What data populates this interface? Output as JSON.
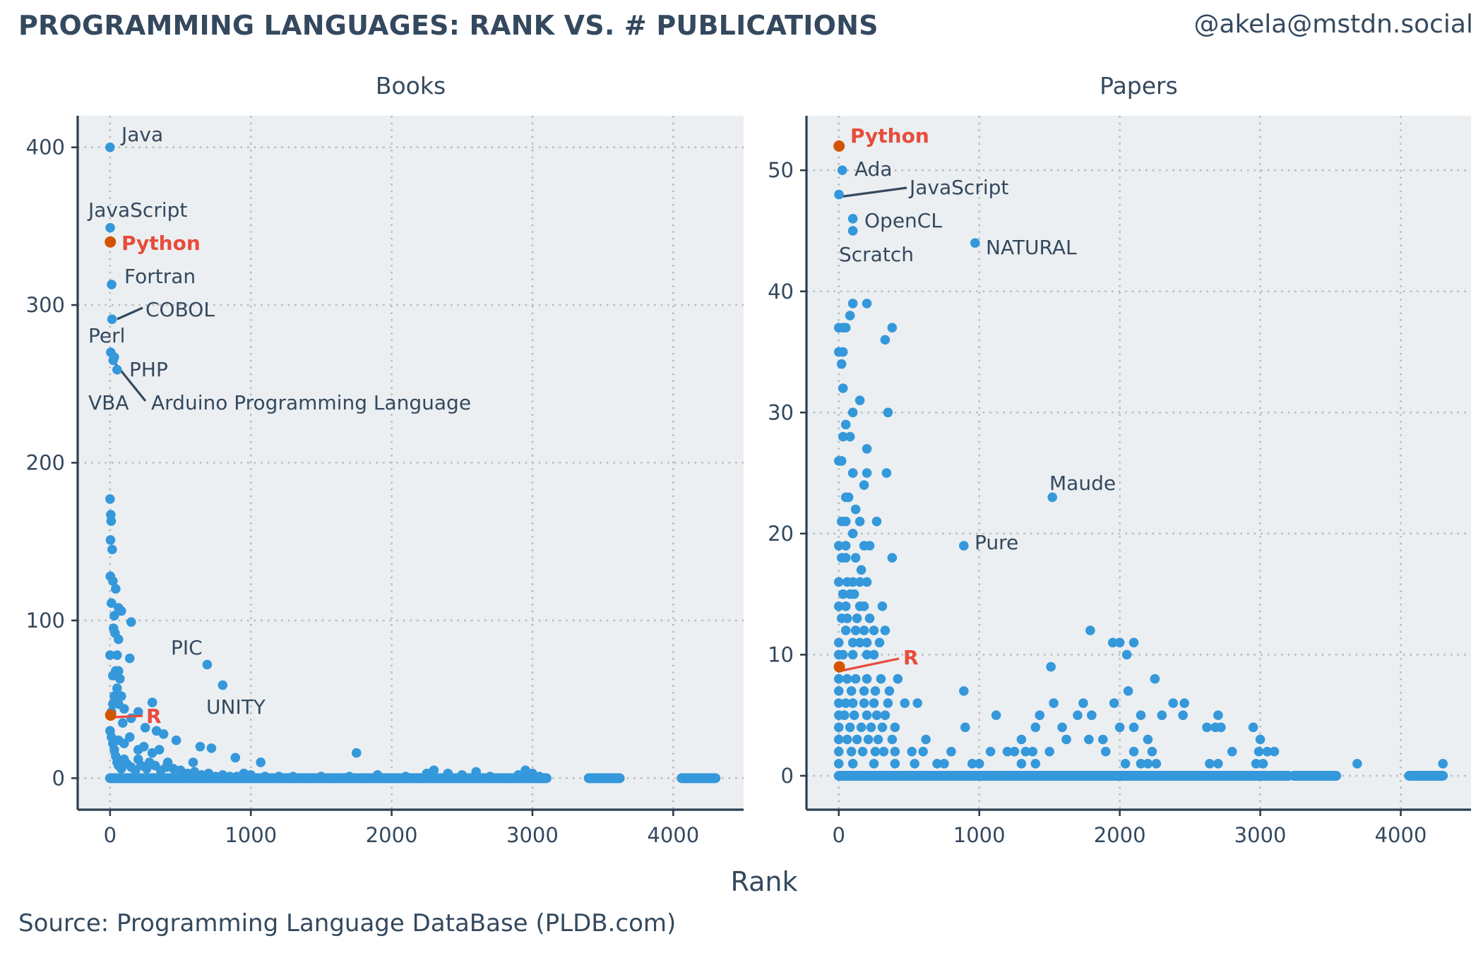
{
  "title": "PROGRAMMING LANGUAGES: RANK VS. # PUBLICATIONS",
  "handle": "@akela@mstdn.social",
  "source": "Source: Programming Language DataBase (PLDB.com)",
  "x_axis_title": "Rank",
  "colors": {
    "point": "#3498db",
    "highlight_point": "#d35400",
    "highlight_text": "#e74c3c",
    "panel_bg": "#eceff1",
    "text": "#34495e"
  },
  "chart_data": [
    {
      "type": "scatter",
      "panel": "Books",
      "xlabel": "Rank",
      "xlim": [
        -230,
        4500
      ],
      "ylim": [
        -20,
        420
      ],
      "x_ticks": [
        0,
        1000,
        2000,
        3000,
        4000
      ],
      "y_ticks": [
        0,
        100,
        200,
        300,
        400
      ],
      "grid": true,
      "highlight": [
        "Python",
        "R"
      ],
      "labeled_points": [
        {
          "label": "Java",
          "x": 0,
          "y": 400
        },
        {
          "label": "JavaScript",
          "x": 1,
          "y": 349
        },
        {
          "label": "Python",
          "x": 2,
          "y": 340
        },
        {
          "label": "Fortran",
          "x": 11,
          "y": 313
        },
        {
          "label": "COBOL",
          "x": 14,
          "y": 291
        },
        {
          "label": "Perl",
          "x": 5,
          "y": 270
        },
        {
          "label": "PHP",
          "x": 22,
          "y": 265
        },
        {
          "label": "VBA",
          "x": 30,
          "y": 267
        },
        {
          "label": "Arduino Programming Language",
          "x": 50,
          "y": 259
        },
        {
          "label": "PIC",
          "x": 690,
          "y": 72
        },
        {
          "label": "UNITY",
          "x": 800,
          "y": 59
        },
        {
          "label": "R",
          "x": 4,
          "y": 40
        }
      ],
      "points": [
        [
          0,
          177
        ],
        [
          5,
          167
        ],
        [
          8,
          163
        ],
        [
          3,
          151
        ],
        [
          15,
          145
        ],
        [
          2,
          128
        ],
        [
          20,
          125
        ],
        [
          40,
          120
        ],
        [
          10,
          111
        ],
        [
          60,
          108
        ],
        [
          80,
          106
        ],
        [
          150,
          99
        ],
        [
          30,
          103
        ],
        [
          25,
          95
        ],
        [
          35,
          92
        ],
        [
          60,
          88
        ],
        [
          0,
          78
        ],
        [
          50,
          78
        ],
        [
          140,
          76
        ],
        [
          40,
          68
        ],
        [
          60,
          68
        ],
        [
          20,
          65
        ],
        [
          70,
          63
        ],
        [
          50,
          57
        ],
        [
          30,
          52
        ],
        [
          80,
          52
        ],
        [
          20,
          47
        ],
        [
          60,
          47
        ],
        [
          300,
          48
        ],
        [
          100,
          44
        ],
        [
          10,
          42
        ],
        [
          200,
          42
        ],
        [
          150,
          38
        ],
        [
          250,
          32
        ],
        [
          330,
          30
        ],
        [
          380,
          28
        ],
        [
          470,
          24
        ],
        [
          90,
          35
        ],
        [
          140,
          26
        ],
        [
          60,
          24
        ],
        [
          200,
          18
        ],
        [
          240,
          20
        ],
        [
          100,
          22
        ],
        [
          300,
          16
        ],
        [
          350,
          18
        ],
        [
          410,
          10
        ],
        [
          590,
          10
        ],
        [
          640,
          20
        ],
        [
          720,
          19
        ],
        [
          890,
          13
        ],
        [
          1070,
          10
        ],
        [
          1750,
          16
        ],
        [
          0,
          30
        ],
        [
          10,
          26
        ],
        [
          20,
          22
        ],
        [
          30,
          18
        ],
        [
          40,
          14
        ],
        [
          50,
          10
        ],
        [
          60,
          8
        ],
        [
          80,
          6
        ],
        [
          100,
          12
        ],
        [
          120,
          9
        ],
        [
          150,
          7
        ],
        [
          180,
          5
        ],
        [
          200,
          12
        ],
        [
          220,
          8
        ],
        [
          260,
          6
        ],
        [
          280,
          10
        ],
        [
          320,
          8
        ],
        [
          360,
          5
        ],
        [
          400,
          7
        ],
        [
          450,
          6
        ],
        [
          500,
          5
        ],
        [
          550,
          3
        ],
        [
          600,
          4
        ],
        [
          650,
          2
        ],
        [
          700,
          3
        ],
        [
          750,
          1
        ],
        [
          800,
          2
        ],
        [
          850,
          1
        ],
        [
          900,
          1
        ],
        [
          950,
          3
        ],
        [
          1000,
          2
        ],
        [
          1100,
          1
        ],
        [
          1200,
          1
        ],
        [
          1300,
          1
        ],
        [
          1400,
          0
        ],
        [
          1500,
          1
        ],
        [
          1600,
          0
        ],
        [
          1700,
          1
        ],
        [
          1800,
          0
        ],
        [
          1900,
          2
        ],
        [
          2000,
          0
        ],
        [
          2100,
          1
        ],
        [
          2200,
          0
        ],
        [
          2250,
          3
        ],
        [
          2300,
          5
        ],
        [
          2400,
          3
        ],
        [
          2500,
          2
        ],
        [
          2600,
          4
        ],
        [
          2700,
          1
        ],
        [
          2800,
          0
        ],
        [
          2900,
          2
        ],
        [
          2950,
          5
        ],
        [
          3000,
          3
        ],
        [
          3050,
          1
        ],
        [
          3100,
          0
        ]
      ],
      "dense_segments": [
        [
          0,
          3100
        ],
        [
          3400,
          3620
        ],
        [
          4060,
          4300
        ]
      ]
    },
    {
      "type": "scatter",
      "panel": "Papers",
      "xlabel": "Rank",
      "xlim": [
        -230,
        4500
      ],
      "ylim": [
        -2.8,
        54.5
      ],
      "x_ticks": [
        0,
        1000,
        2000,
        3000,
        4000
      ],
      "y_ticks": [
        0,
        10,
        20,
        30,
        40,
        50
      ],
      "grid": true,
      "highlight": [
        "Python",
        "R"
      ],
      "labeled_points": [
        {
          "label": "Python",
          "x": 2,
          "y": 52
        },
        {
          "label": "Ada",
          "x": 25,
          "y": 50
        },
        {
          "label": "JavaScript",
          "x": 1,
          "y": 48
        },
        {
          "label": "OpenCL",
          "x": 100,
          "y": 46
        },
        {
          "label": "Scratch",
          "x": 100,
          "y": 45
        },
        {
          "label": "NATURAL",
          "x": 970,
          "y": 44
        },
        {
          "label": "Maude",
          "x": 1520,
          "y": 23
        },
        {
          "label": "Pure",
          "x": 890,
          "y": 19
        },
        {
          "label": "R",
          "x": 4,
          "y": 9
        }
      ],
      "points": [
        [
          0,
          37
        ],
        [
          30,
          37
        ],
        [
          50,
          37
        ],
        [
          100,
          39
        ],
        [
          200,
          39
        ],
        [
          80,
          38
        ],
        [
          330,
          36
        ],
        [
          380,
          37
        ],
        [
          0,
          35
        ],
        [
          30,
          35
        ],
        [
          20,
          34
        ],
        [
          30,
          32
        ],
        [
          100,
          30
        ],
        [
          150,
          31
        ],
        [
          350,
          30
        ],
        [
          50,
          29
        ],
        [
          30,
          28
        ],
        [
          80,
          28
        ],
        [
          200,
          27
        ],
        [
          0,
          26
        ],
        [
          20,
          26
        ],
        [
          100,
          25
        ],
        [
          200,
          25
        ],
        [
          340,
          25
        ],
        [
          180,
          24
        ],
        [
          50,
          23
        ],
        [
          70,
          23
        ],
        [
          20,
          21
        ],
        [
          50,
          21
        ],
        [
          120,
          22
        ],
        [
          150,
          21
        ],
        [
          270,
          21
        ],
        [
          0,
          19
        ],
        [
          50,
          19
        ],
        [
          100,
          20
        ],
        [
          180,
          19
        ],
        [
          220,
          19
        ],
        [
          20,
          18
        ],
        [
          50,
          18
        ],
        [
          120,
          18
        ],
        [
          160,
          17
        ],
        [
          380,
          18
        ],
        [
          0,
          16
        ],
        [
          60,
          16
        ],
        [
          100,
          16
        ],
        [
          150,
          16
        ],
        [
          200,
          16
        ],
        [
          30,
          15
        ],
        [
          80,
          15
        ],
        [
          110,
          15
        ],
        [
          0,
          14
        ],
        [
          50,
          14
        ],
        [
          150,
          14
        ],
        [
          180,
          14
        ],
        [
          20,
          13
        ],
        [
          60,
          13
        ],
        [
          130,
          13
        ],
        [
          220,
          13
        ],
        [
          310,
          14
        ],
        [
          50,
          12
        ],
        [
          120,
          12
        ],
        [
          180,
          12
        ],
        [
          250,
          12
        ],
        [
          330,
          12
        ],
        [
          0,
          11
        ],
        [
          100,
          11
        ],
        [
          150,
          11
        ],
        [
          200,
          11
        ],
        [
          290,
          11
        ],
        [
          0,
          10
        ],
        [
          30,
          10
        ],
        [
          100,
          10
        ],
        [
          200,
          10
        ],
        [
          250,
          10
        ],
        [
          1790,
          12
        ],
        [
          0,
          8
        ],
        [
          60,
          8
        ],
        [
          120,
          8
        ],
        [
          200,
          8
        ],
        [
          300,
          8
        ],
        [
          420,
          8
        ],
        [
          0,
          7
        ],
        [
          90,
          7
        ],
        [
          180,
          7
        ],
        [
          260,
          7
        ],
        [
          360,
          7
        ],
        [
          890,
          7
        ],
        [
          0,
          6
        ],
        [
          50,
          6
        ],
        [
          100,
          6
        ],
        [
          180,
          6
        ],
        [
          250,
          6
        ],
        [
          350,
          6
        ],
        [
          470,
          6
        ],
        [
          560,
          6
        ],
        [
          0,
          5
        ],
        [
          40,
          5
        ],
        [
          110,
          5
        ],
        [
          200,
          5
        ],
        [
          270,
          5
        ],
        [
          330,
          5
        ],
        [
          1120,
          5
        ],
        [
          1430,
          5
        ],
        [
          1510,
          9
        ],
        [
          1530,
          6
        ],
        [
          1700,
          5
        ],
        [
          1740,
          6
        ],
        [
          1800,
          5
        ],
        [
          0,
          4
        ],
        [
          80,
          4
        ],
        [
          160,
          4
        ],
        [
          230,
          4
        ],
        [
          310,
          4
        ],
        [
          400,
          4
        ],
        [
          900,
          4
        ],
        [
          0,
          3
        ],
        [
          60,
          3
        ],
        [
          130,
          3
        ],
        [
          210,
          3
        ],
        [
          280,
          3
        ],
        [
          380,
          3
        ],
        [
          620,
          3
        ],
        [
          1300,
          3
        ],
        [
          1620,
          3
        ],
        [
          1780,
          3
        ],
        [
          0,
          2
        ],
        [
          90,
          2
        ],
        [
          170,
          2
        ],
        [
          260,
          2
        ],
        [
          320,
          2
        ],
        [
          400,
          2
        ],
        [
          520,
          2
        ],
        [
          600,
          2
        ],
        [
          800,
          2
        ],
        [
          1080,
          2
        ],
        [
          1200,
          2
        ],
        [
          1250,
          2
        ],
        [
          1330,
          2
        ],
        [
          1380,
          2
        ],
        [
          1500,
          2
        ],
        [
          1900,
          2
        ],
        [
          0,
          1
        ],
        [
          100,
          1
        ],
        [
          250,
          1
        ],
        [
          400,
          1
        ],
        [
          540,
          1
        ],
        [
          700,
          1
        ],
        [
          750,
          1
        ],
        [
          950,
          1
        ],
        [
          1000,
          1
        ],
        [
          1300,
          1
        ],
        [
          1400,
          1
        ],
        [
          1950,
          11
        ],
        [
          2000,
          11
        ],
        [
          2050,
          10
        ],
        [
          2100,
          11
        ],
        [
          2250,
          8
        ],
        [
          1960,
          6
        ],
        [
          2000,
          4
        ],
        [
          2060,
          7
        ],
        [
          2100,
          4
        ],
        [
          2150,
          5
        ],
        [
          2200,
          3
        ],
        [
          2230,
          2
        ],
        [
          2380,
          6
        ],
        [
          2450,
          5
        ],
        [
          2460,
          6
        ],
        [
          2300,
          5
        ],
        [
          2200,
          1
        ],
        [
          2100,
          2
        ],
        [
          2040,
          1
        ],
        [
          2150,
          1
        ],
        [
          2260,
          1
        ],
        [
          2680,
          4
        ],
        [
          2620,
          4
        ],
        [
          2700,
          5
        ],
        [
          2720,
          4
        ],
        [
          2800,
          2
        ],
        [
          2640,
          1
        ],
        [
          2700,
          1
        ],
        [
          2950,
          4
        ],
        [
          3000,
          3
        ],
        [
          2990,
          2
        ],
        [
          3050,
          2
        ],
        [
          3100,
          2
        ],
        [
          2970,
          1
        ],
        [
          3020,
          1
        ],
        [
          3690,
          1
        ],
        [
          4300,
          1
        ],
        [
          1590,
          4
        ],
        [
          1400,
          4
        ],
        [
          1880,
          3
        ]
      ],
      "dense_segments": [
        [
          0,
          3200
        ],
        [
          3240,
          3540
        ],
        [
          4060,
          4300
        ]
      ]
    }
  ]
}
